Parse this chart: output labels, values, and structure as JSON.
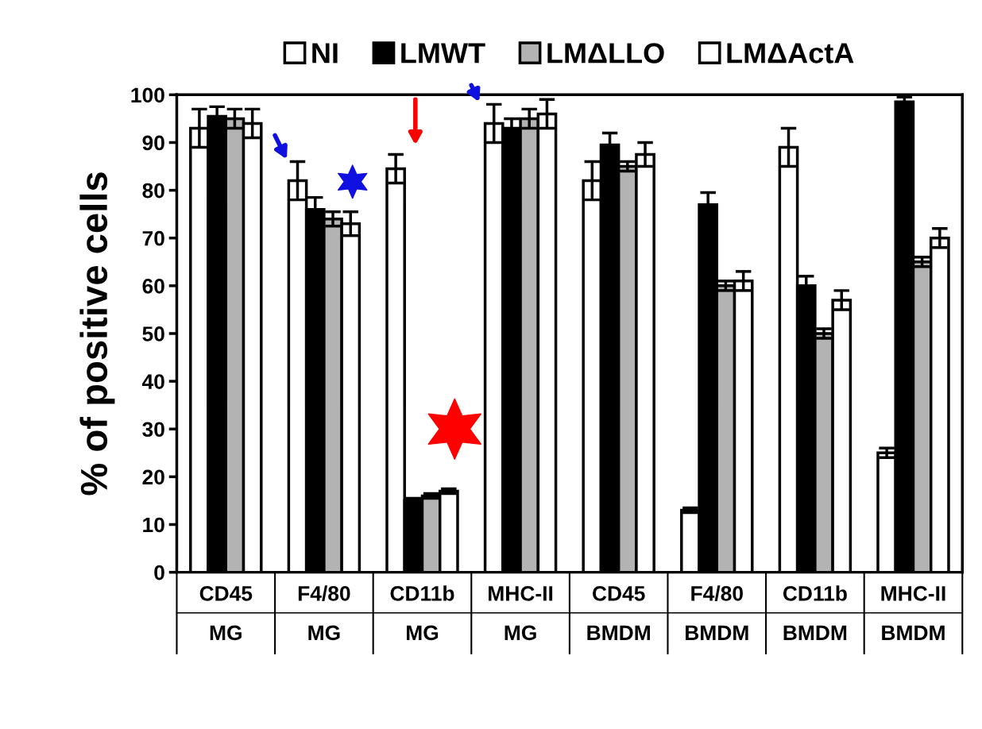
{
  "chart_data": {
    "type": "bar",
    "ylabel": "% of positive cells",
    "categories": [
      "CD45\nMG",
      "F4/80\nMG",
      "CD11b\nMG",
      "MHC-II\nMG",
      "CD45\nBMDM",
      "F4/80\nBMDM",
      "CD11b\nBMDM",
      "MHC-II\nBMDM"
    ],
    "series": [
      {
        "name": "NI",
        "color": "#ffffff",
        "values": [
          93,
          82,
          84.5,
          94,
          82,
          13,
          89,
          25
        ],
        "errors": [
          4,
          4,
          3,
          4,
          4,
          0.5,
          4,
          1
        ]
      },
      {
        "name": "LMWT",
        "color": "#000000",
        "values": [
          95.5,
          76,
          15,
          93,
          89.5,
          77,
          60,
          98.5
        ],
        "errors": [
          2,
          2.5,
          0.5,
          2,
          2.5,
          2.5,
          2,
          1
        ]
      },
      {
        "name": "LMΔLLO",
        "color": "#b3b3b3",
        "values": [
          95,
          74,
          16,
          95,
          85,
          60,
          50,
          65
        ],
        "errors": [
          2,
          1.5,
          0.5,
          2,
          1,
          1,
          1,
          1
        ]
      },
      {
        "name": "LMΔActA",
        "color": "#ffffff",
        "values": [
          94,
          73,
          17,
          96,
          87.5,
          61,
          57,
          70
        ],
        "errors": [
          3,
          2.5,
          0.5,
          3,
          2.5,
          2,
          2,
          2
        ]
      }
    ],
    "ylim": [
      0,
      100
    ],
    "yticks": [
      0,
      10,
      20,
      30,
      40,
      50,
      60,
      70,
      80,
      90,
      100
    ],
    "grid": false,
    "legend": "top"
  }
}
